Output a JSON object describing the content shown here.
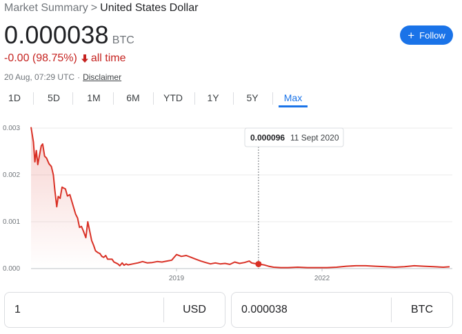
{
  "breadcrumb": {
    "parent": "Market Summary",
    "separator": ">",
    "current": "United States Dollar"
  },
  "price": {
    "value": "0.000038",
    "unit": "BTC"
  },
  "change": {
    "text": "-0.00 (98.75%)",
    "period": "all time",
    "color": "#c5221f"
  },
  "meta": {
    "timestamp": "20 Aug, 07:29 UTC",
    "separator": "·",
    "disclaimer": "Disclaimer"
  },
  "follow": {
    "icon": "plus-icon",
    "label": "Follow",
    "color": "#1a73e8"
  },
  "tabs": [
    {
      "label": "1D",
      "active": false
    },
    {
      "label": "5D",
      "active": false
    },
    {
      "label": "1M",
      "active": false
    },
    {
      "label": "6M",
      "active": false
    },
    {
      "label": "YTD",
      "active": false
    },
    {
      "label": "1Y",
      "active": false
    },
    {
      "label": "5Y",
      "active": false
    },
    {
      "label": "Max",
      "active": true
    }
  ],
  "tooltip": {
    "value": "0.000096",
    "date": "11 Sept 2020"
  },
  "chart_data": {
    "type": "line",
    "x_start": 2016.0,
    "x_end": 2024.63,
    "ylim": [
      0,
      0.003
    ],
    "y_ticks": [
      "0.003",
      "0.002",
      "0.001",
      "0.000"
    ],
    "x_ticks": [
      {
        "label": "2019",
        "x": 2019
      },
      {
        "label": "2022",
        "x": 2022
      }
    ],
    "line_color": "#d93025",
    "grid": true,
    "highlight": {
      "x": 2020.69,
      "y": 9.6e-05
    },
    "series": [
      {
        "values": [
          [
            2016.0,
            0.00302
          ],
          [
            2016.05,
            0.0027
          ],
          [
            2016.08,
            0.00228
          ],
          [
            2016.11,
            0.00252
          ],
          [
            2016.14,
            0.00222
          ],
          [
            2016.17,
            0.0024
          ],
          [
            2016.21,
            0.00262
          ],
          [
            2016.24,
            0.00266
          ],
          [
            2016.28,
            0.0024
          ],
          [
            2016.32,
            0.00236
          ],
          [
            2016.37,
            0.00224
          ],
          [
            2016.42,
            0.00218
          ],
          [
            2016.46,
            0.002
          ],
          [
            2016.49,
            0.00168
          ],
          [
            2016.53,
            0.00132
          ],
          [
            2016.56,
            0.00154
          ],
          [
            2016.6,
            0.0015
          ],
          [
            2016.64,
            0.00174
          ],
          [
            2016.67,
            0.00172
          ],
          [
            2016.71,
            0.0017
          ],
          [
            2016.75,
            0.00155
          ],
          [
            2016.8,
            0.00158
          ],
          [
            2016.84,
            0.00144
          ],
          [
            2016.88,
            0.0013
          ],
          [
            2016.92,
            0.00116
          ],
          [
            2016.96,
            0.00108
          ],
          [
            2017.0,
            0.00088
          ],
          [
            2017.04,
            0.0009
          ],
          [
            2017.08,
            0.0008
          ],
          [
            2017.13,
            0.00066
          ],
          [
            2017.17,
            0.001
          ],
          [
            2017.21,
            0.0008
          ],
          [
            2017.25,
            0.0006
          ],
          [
            2017.29,
            0.0005
          ],
          [
            2017.33,
            0.00038
          ],
          [
            2017.38,
            0.00034
          ],
          [
            2017.42,
            0.00032
          ],
          [
            2017.46,
            0.00026
          ],
          [
            2017.5,
            0.00024
          ],
          [
            2017.54,
            0.00028
          ],
          [
            2017.58,
            0.0002
          ],
          [
            2017.63,
            0.0002
          ],
          [
            2017.67,
            0.0002
          ],
          [
            2017.71,
            0.00014
          ],
          [
            2017.75,
            0.00012
          ],
          [
            2017.79,
            0.0001
          ],
          [
            2017.83,
            6e-05
          ],
          [
            2017.88,
            0.00012
          ],
          [
            2017.92,
            7e-05
          ],
          [
            2017.96,
            0.0001
          ],
          [
            2018.0,
            8e-05
          ],
          [
            2018.1,
            0.0001
          ],
          [
            2018.2,
            0.00012
          ],
          [
            2018.3,
            0.00015
          ],
          [
            2018.4,
            0.00012
          ],
          [
            2018.5,
            0.00013
          ],
          [
            2018.6,
            0.00015
          ],
          [
            2018.7,
            0.00014
          ],
          [
            2018.8,
            0.00016
          ],
          [
            2018.9,
            0.00018
          ],
          [
            2019.0,
            0.0003
          ],
          [
            2019.1,
            0.00026
          ],
          [
            2019.2,
            0.00028
          ],
          [
            2019.3,
            0.00024
          ],
          [
            2019.4,
            0.0002
          ],
          [
            2019.5,
            0.00016
          ],
          [
            2019.6,
            0.00013
          ],
          [
            2019.7,
            0.0001
          ],
          [
            2019.8,
            0.00012
          ],
          [
            2019.9,
            0.0001
          ],
          [
            2020.0,
            0.00011
          ],
          [
            2020.1,
            9e-05
          ],
          [
            2020.2,
            0.00014
          ],
          [
            2020.3,
            0.00011
          ],
          [
            2020.4,
            0.00013
          ],
          [
            2020.5,
            0.00016
          ],
          [
            2020.55,
            0.00012
          ],
          [
            2020.6,
            0.00011
          ],
          [
            2020.69,
            9.6e-05
          ],
          [
            2020.8,
            8e-05
          ],
          [
            2020.9,
            5e-05
          ],
          [
            2021.0,
            3e-05
          ],
          [
            2021.15,
            2e-05
          ],
          [
            2021.3,
            2e-05
          ],
          [
            2021.5,
            3e-05
          ],
          [
            2021.7,
            2e-05
          ],
          [
            2021.9,
            2e-05
          ],
          [
            2022.1,
            2e-05
          ],
          [
            2022.3,
            3e-05
          ],
          [
            2022.5,
            5e-05
          ],
          [
            2022.7,
            6e-05
          ],
          [
            2022.9,
            6e-05
          ],
          [
            2023.1,
            5e-05
          ],
          [
            2023.3,
            4e-05
          ],
          [
            2023.5,
            3e-05
          ],
          [
            2023.7,
            4e-05
          ],
          [
            2023.9,
            6e-05
          ],
          [
            2024.1,
            5e-05
          ],
          [
            2024.3,
            4e-05
          ],
          [
            2024.5,
            3e-05
          ],
          [
            2024.63,
            3.8e-05
          ]
        ]
      }
    ]
  },
  "converter": {
    "from": {
      "value": "1",
      "unit": "USD"
    },
    "to": {
      "value": "0.000038",
      "unit": "BTC"
    }
  }
}
